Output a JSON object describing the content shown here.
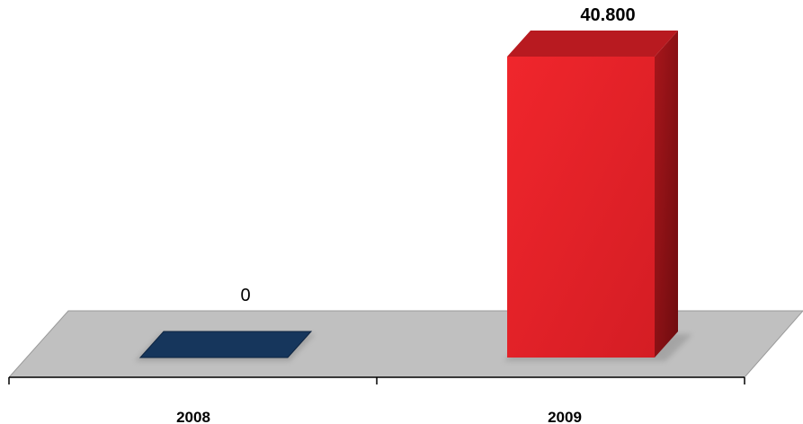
{
  "chart_data": {
    "type": "bar",
    "categories": [
      "2008",
      "2009"
    ],
    "values": [
      0,
      40800
    ],
    "data_labels": [
      "0",
      "40.800"
    ],
    "title": "",
    "xlabel": "",
    "ylabel": "",
    "ylim": [
      0,
      40800
    ],
    "grid": false,
    "legend": "none",
    "colors": {
      "bar_2008": "#16365c",
      "bar_2009": "#e8212b",
      "floor": "#c0c0c0"
    }
  }
}
